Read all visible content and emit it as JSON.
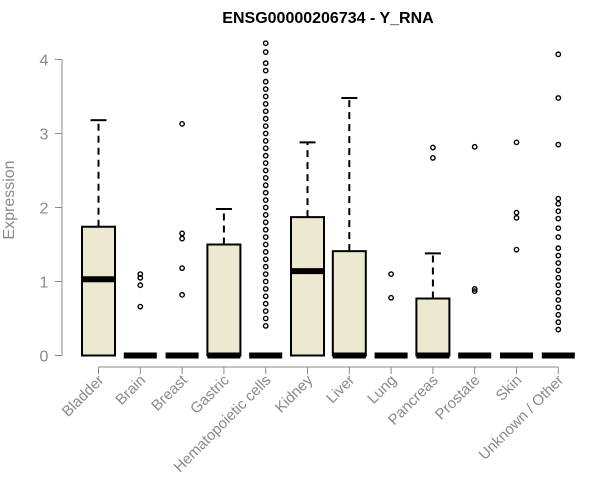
{
  "chart_data": {
    "type": "boxplot",
    "title": "ENSG00000206734 - Y_RNA",
    "xlabel": "",
    "ylabel": "Expression",
    "ylim": [
      0,
      4.25
    ],
    "yticks": [
      0,
      1,
      2,
      3,
      4
    ],
    "yticks_text": [
      "0",
      "1",
      "2",
      "3",
      "4"
    ],
    "grid": false,
    "box_fill": "#ede8d0",
    "box_stroke": "#000000",
    "categories": [
      "Bladder",
      "Brain",
      "Breast",
      "Gastric",
      "Hematopoietic cells",
      "Kidney",
      "Liver",
      "Lung",
      "Pancreas",
      "Prostate",
      "Skin",
      "Unknown / Other"
    ],
    "boxes": [
      {
        "category": "Bladder",
        "low": 0,
        "q1": 0,
        "median": 1.03,
        "q3": 1.74,
        "high": 3.18,
        "outliers": []
      },
      {
        "category": "Brain",
        "low": 0,
        "q1": 0,
        "median": 0,
        "q3": 0,
        "high": 0,
        "outliers": [
          0.66,
          0.95,
          1.05,
          1.1
        ]
      },
      {
        "category": "Breast",
        "low": 0,
        "q1": 0,
        "median": 0,
        "q3": 0,
        "high": 0,
        "outliers": [
          0.82,
          1.18,
          1.58,
          1.65,
          3.13
        ]
      },
      {
        "category": "Gastric",
        "low": 0,
        "q1": 0,
        "median": 0,
        "q3": 1.5,
        "high": 1.98,
        "outliers": []
      },
      {
        "category": "Hematopoietic cells",
        "low": 0,
        "q1": 0,
        "median": 0,
        "q3": 0,
        "high": 0,
        "outliers": [
          0.4,
          0.5,
          0.6,
          0.7,
          0.8,
          0.9,
          1.0,
          1.1,
          1.2,
          1.3,
          1.4,
          1.5,
          1.6,
          1.7,
          1.8,
          1.9,
          2.0,
          2.1,
          2.2,
          2.3,
          2.4,
          2.5,
          2.6,
          2.7,
          2.8,
          2.9,
          3.0,
          3.1,
          3.2,
          3.3,
          3.4,
          3.5,
          3.6,
          3.7,
          3.85,
          3.95,
          4.1,
          4.22
        ]
      },
      {
        "category": "Kidney",
        "low": 0,
        "q1": 0,
        "median": 1.14,
        "q3": 1.87,
        "high": 2.88,
        "outliers": []
      },
      {
        "category": "Liver",
        "low": 0,
        "q1": 0,
        "median": 0,
        "q3": 1.41,
        "high": 3.48,
        "outliers": []
      },
      {
        "category": "Lung",
        "low": 0,
        "q1": 0,
        "median": 0,
        "q3": 0,
        "high": 0,
        "outliers": [
          0.78,
          1.1
        ]
      },
      {
        "category": "Pancreas",
        "low": 0,
        "q1": 0,
        "median": 0,
        "q3": 0.77,
        "high": 1.38,
        "outliers": [
          2.67,
          2.81
        ]
      },
      {
        "category": "Prostate",
        "low": 0,
        "q1": 0,
        "median": 0,
        "q3": 0,
        "high": 0,
        "outliers": [
          0.87,
          0.9,
          2.82
        ]
      },
      {
        "category": "Skin",
        "low": 0,
        "q1": 0,
        "median": 0,
        "q3": 0,
        "high": 0,
        "outliers": [
          1.43,
          1.86,
          1.93,
          2.88
        ]
      },
      {
        "category": "Unknown / Other",
        "low": 0,
        "q1": 0,
        "median": 0,
        "q3": 0,
        "high": 0,
        "outliers": [
          0.35,
          0.45,
          0.55,
          0.65,
          0.75,
          0.85,
          0.95,
          1.05,
          1.15,
          1.25,
          1.35,
          1.45,
          1.6,
          1.72,
          1.85,
          1.95,
          2.05,
          2.12,
          2.85,
          3.48,
          4.07
        ]
      }
    ]
  }
}
